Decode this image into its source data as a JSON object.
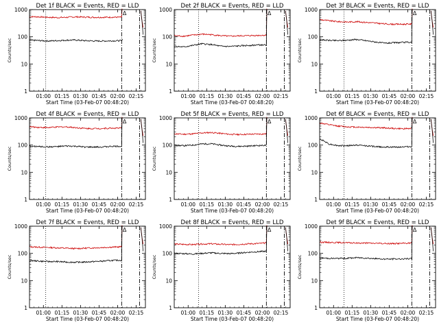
{
  "chart_data": [
    {
      "type": "line",
      "title": "Det 1f BLACK = Events, RED = LLD",
      "xlabel": "Start Time (03-Feb-07 00:48:20)",
      "ylabel": "Counts/sec",
      "yscale": "log",
      "ylim": [
        1,
        1000
      ],
      "yticks": [
        "1",
        "10",
        "100",
        "1000"
      ],
      "xlim": [
        0,
        100
      ],
      "xticks": [
        {
          "v": 12,
          "label": "01:00"
        },
        {
          "v": 28,
          "label": "01:15"
        },
        {
          "v": 44,
          "label": "01:30"
        },
        {
          "v": 60,
          "label": "01:45"
        },
        {
          "v": 76,
          "label": "02:00"
        },
        {
          "v": 92,
          "label": "02:15"
        }
      ],
      "dotted_x": 14,
      "dashdot_x": [
        79.5,
        95
      ],
      "marker": "Δ",
      "marker_x": 82,
      "series": [
        {
          "color": "#cc0000",
          "values": [
            550,
            540,
            520,
            510,
            520,
            540,
            530,
            520,
            520,
            525,
            525,
            1050
          ]
        },
        {
          "color": "#000000",
          "values": [
            75,
            73,
            70,
            72,
            75,
            76,
            72,
            70,
            70,
            71,
            72,
            75
          ]
        }
      ]
    },
    {
      "type": "line",
      "title": "Det 2f BLACK = Events, RED = LLD",
      "xlabel": "Start Time (03-Feb-07 00:48:20)",
      "ylabel": "Counts/sec",
      "yscale": "log",
      "ylim": [
        1,
        1000
      ],
      "yticks": [
        "1",
        "10",
        "100",
        "1000"
      ],
      "xlim": [
        0,
        100
      ],
      "xticks": [
        {
          "v": 12,
          "label": "01:00"
        },
        {
          "v": 28,
          "label": "01:15"
        },
        {
          "v": 44,
          "label": "01:30"
        },
        {
          "v": 60,
          "label": "01:45"
        },
        {
          "v": 76,
          "label": "02:00"
        },
        {
          "v": 92,
          "label": "02:15"
        }
      ],
      "dotted_x": 21,
      "dashdot_x": [
        79.5,
        95
      ],
      "marker": "Δ",
      "marker_x": 82,
      "series": [
        {
          "color": "#cc0000",
          "values": [
            110,
            105,
            115,
            125,
            120,
            110,
            105,
            108,
            110,
            112,
            115,
            1050
          ]
        },
        {
          "color": "#000000",
          "values": [
            45,
            42,
            48,
            55,
            52,
            45,
            44,
            46,
            48,
            50,
            50,
            1000
          ]
        }
      ]
    },
    {
      "type": "line",
      "title": "Det 3f BLACK = Events, RED = LLD",
      "xlabel": "Start Time (03-Feb-07 00:48:20)",
      "ylabel": "Counts/sec",
      "yscale": "log",
      "ylim": [
        1,
        1000
      ],
      "yticks": [
        "1",
        "10",
        "100",
        "1000"
      ],
      "xlim": [
        0,
        100
      ],
      "xticks": [
        {
          "v": 12,
          "label": "01:00"
        },
        {
          "v": 28,
          "label": "01:15"
        },
        {
          "v": 44,
          "label": "01:30"
        },
        {
          "v": 60,
          "label": "01:45"
        },
        {
          "v": 76,
          "label": "02:00"
        },
        {
          "v": 92,
          "label": "02:15"
        }
      ],
      "dotted_x": 21,
      "dashdot_x": [
        79.5,
        95
      ],
      "marker": "Δ",
      "marker_x": 82,
      "series": [
        {
          "color": "#cc0000",
          "values": [
            430,
            390,
            360,
            350,
            360,
            340,
            320,
            300,
            290,
            290,
            295,
            1050
          ]
        },
        {
          "color": "#000000",
          "values": [
            78,
            74,
            72,
            75,
            80,
            72,
            65,
            58,
            60,
            62,
            64,
            1000
          ]
        }
      ]
    },
    {
      "type": "line",
      "title": "Det 4f BLACK = Events, RED = LLD",
      "xlabel": "Start Time (03-Feb-07 00:48:20)",
      "ylabel": "Counts/sec",
      "yscale": "log",
      "ylim": [
        1,
        1000
      ],
      "yticks": [
        "1",
        "10",
        "100",
        "1000"
      ],
      "xlim": [
        0,
        100
      ],
      "xticks": [
        {
          "v": 12,
          "label": "01:00"
        },
        {
          "v": 28,
          "label": "01:15"
        },
        {
          "v": 44,
          "label": "01:30"
        },
        {
          "v": 60,
          "label": "01:45"
        },
        {
          "v": 76,
          "label": "02:00"
        },
        {
          "v": 92,
          "label": "02:15"
        }
      ],
      "dotted_x": 14,
      "dashdot_x": [
        79.5,
        95
      ],
      "marker": "Δ",
      "marker_x": 82,
      "series": [
        {
          "color": "#cc0000",
          "values": [
            470,
            450,
            440,
            460,
            470,
            440,
            410,
            405,
            410,
            420,
            420,
            1050
          ]
        },
        {
          "color": "#000000",
          "values": [
            92,
            88,
            86,
            88,
            92,
            90,
            85,
            84,
            86,
            90,
            90,
            1000
          ]
        }
      ]
    },
    {
      "type": "line",
      "title": "Det 5f BLACK = Events, RED = LLD",
      "xlabel": "Start Time (03-Feb-07 00:48:20)",
      "ylabel": "Counts/sec",
      "yscale": "log",
      "ylim": [
        1,
        1000
      ],
      "yticks": [
        "1",
        "10",
        "100",
        "1000"
      ],
      "xlim": [
        0,
        100
      ],
      "xticks": [
        {
          "v": 12,
          "label": "01:00"
        },
        {
          "v": 28,
          "label": "01:15"
        },
        {
          "v": 44,
          "label": "01:30"
        },
        {
          "v": 60,
          "label": "01:45"
        },
        {
          "v": 76,
          "label": "02:00"
        },
        {
          "v": 92,
          "label": "02:15"
        }
      ],
      "dotted_x": 21,
      "dashdot_x": [
        79.5,
        95
      ],
      "marker": "Δ",
      "marker_x": 82,
      "series": [
        {
          "color": "#cc0000",
          "values": [
            260,
            250,
            260,
            280,
            290,
            270,
            250,
            245,
            250,
            255,
            258,
            1050
          ]
        },
        {
          "color": "#000000",
          "values": [
            98,
            95,
            100,
            110,
            112,
            100,
            92,
            90,
            92,
            96,
            98,
            1000
          ]
        }
      ]
    },
    {
      "type": "line",
      "title": "Det 6f BLACK = Events, RED = LLD",
      "xlabel": "Start Time (03-Feb-07 00:48:20)",
      "ylabel": "Counts/sec",
      "yscale": "log",
      "ylim": [
        1,
        1000
      ],
      "yticks": [
        "1",
        "10",
        "100",
        "1000"
      ],
      "xlim": [
        0,
        100
      ],
      "xticks": [
        {
          "v": 12,
          "label": "01:00"
        },
        {
          "v": 28,
          "label": "01:15"
        },
        {
          "v": 44,
          "label": "01:30"
        },
        {
          "v": 60,
          "label": "01:45"
        },
        {
          "v": 76,
          "label": "02:00"
        },
        {
          "v": 92,
          "label": "02:15"
        }
      ],
      "dotted_x": 21,
      "dashdot_x": [
        79.5,
        95
      ],
      "marker": "Δ",
      "marker_x": 82,
      "series": [
        {
          "color": "#cc0000",
          "values": [
            650,
            560,
            500,
            470,
            460,
            450,
            440,
            430,
            410,
            400,
            410,
            1050
          ]
        },
        {
          "color": "#000000",
          "values": [
            170,
            110,
            95,
            95,
            100,
            95,
            88,
            85,
            84,
            86,
            88,
            1000
          ]
        }
      ]
    },
    {
      "type": "line",
      "title": "Det 7f BLACK = Events, RED = LLD",
      "xlabel": "Start Time (03-Feb-07 00:48:20)",
      "ylabel": "Counts/sec",
      "yscale": "log",
      "ylim": [
        1,
        1000
      ],
      "yticks": [
        "1",
        "10",
        "100",
        "1000"
      ],
      "xlim": [
        0,
        100
      ],
      "xticks": [
        {
          "v": 12,
          "label": "01:00"
        },
        {
          "v": 28,
          "label": "01:15"
        },
        {
          "v": 44,
          "label": "01:30"
        },
        {
          "v": 60,
          "label": "01:45"
        },
        {
          "v": 76,
          "label": "02:00"
        },
        {
          "v": 92,
          "label": "02:15"
        }
      ],
      "dotted_x": 14,
      "dashdot_x": [
        79.5,
        95
      ],
      "marker": "Δ",
      "marker_x": 82,
      "series": [
        {
          "color": "#cc0000",
          "values": [
            175,
            170,
            165,
            160,
            155,
            150,
            155,
            160,
            165,
            170,
            175,
            1050
          ]
        },
        {
          "color": "#000000",
          "values": [
            55,
            52,
            50,
            50,
            48,
            47,
            48,
            50,
            52,
            55,
            56,
            1000
          ]
        }
      ]
    },
    {
      "type": "line",
      "title": "Det 8f BLACK = Events, RED = LLD",
      "xlabel": "Start Time (03-Feb-07 00:48:20)",
      "ylabel": "Counts/sec",
      "yscale": "log",
      "ylim": [
        1,
        1000
      ],
      "yticks": [
        "1",
        "10",
        "100",
        "1000"
      ],
      "xlim": [
        0,
        100
      ],
      "xticks": [
        {
          "v": 12,
          "label": "01:00"
        },
        {
          "v": 28,
          "label": "01:15"
        },
        {
          "v": 44,
          "label": "01:30"
        },
        {
          "v": 60,
          "label": "01:45"
        },
        {
          "v": 76,
          "label": "02:00"
        },
        {
          "v": 92,
          "label": "02:15"
        }
      ],
      "dotted_x": 21,
      "dashdot_x": [
        79.5,
        95
      ],
      "marker": "Δ",
      "marker_x": 82,
      "series": [
        {
          "color": "#cc0000",
          "values": [
            220,
            215,
            210,
            220,
            225,
            215,
            210,
            215,
            225,
            230,
            240,
            1050
          ]
        },
        {
          "color": "#000000",
          "values": [
            100,
            98,
            95,
            100,
            105,
            100,
            98,
            102,
            110,
            115,
            120,
            1000
          ]
        }
      ]
    },
    {
      "type": "line",
      "title": "Det 9f BLACK = Events, RED = LLD",
      "xlabel": "Start Time (03-Feb-07 00:48:20)",
      "ylabel": "Counts/sec",
      "yscale": "log",
      "ylim": [
        1,
        1000
      ],
      "yticks": [
        "1",
        "10",
        "100",
        "1000"
      ],
      "xlim": [
        0,
        100
      ],
      "xticks": [
        {
          "v": 12,
          "label": "01:00"
        },
        {
          "v": 28,
          "label": "01:15"
        },
        {
          "v": 44,
          "label": "01:30"
        },
        {
          "v": 60,
          "label": "01:45"
        },
        {
          "v": 76,
          "label": "02:00"
        },
        {
          "v": 92,
          "label": "02:15"
        }
      ],
      "dotted_x": 21,
      "dashdot_x": [
        79.5,
        95
      ],
      "marker": "Δ",
      "marker_x": 82,
      "series": [
        {
          "color": "#cc0000",
          "values": [
            260,
            255,
            250,
            245,
            240,
            240,
            235,
            230,
            230,
            235,
            240,
            1050
          ]
        },
        {
          "color": "#000000",
          "values": [
            68,
            66,
            65,
            66,
            70,
            68,
            64,
            62,
            62,
            63,
            64,
            1000
          ]
        }
      ]
    }
  ]
}
